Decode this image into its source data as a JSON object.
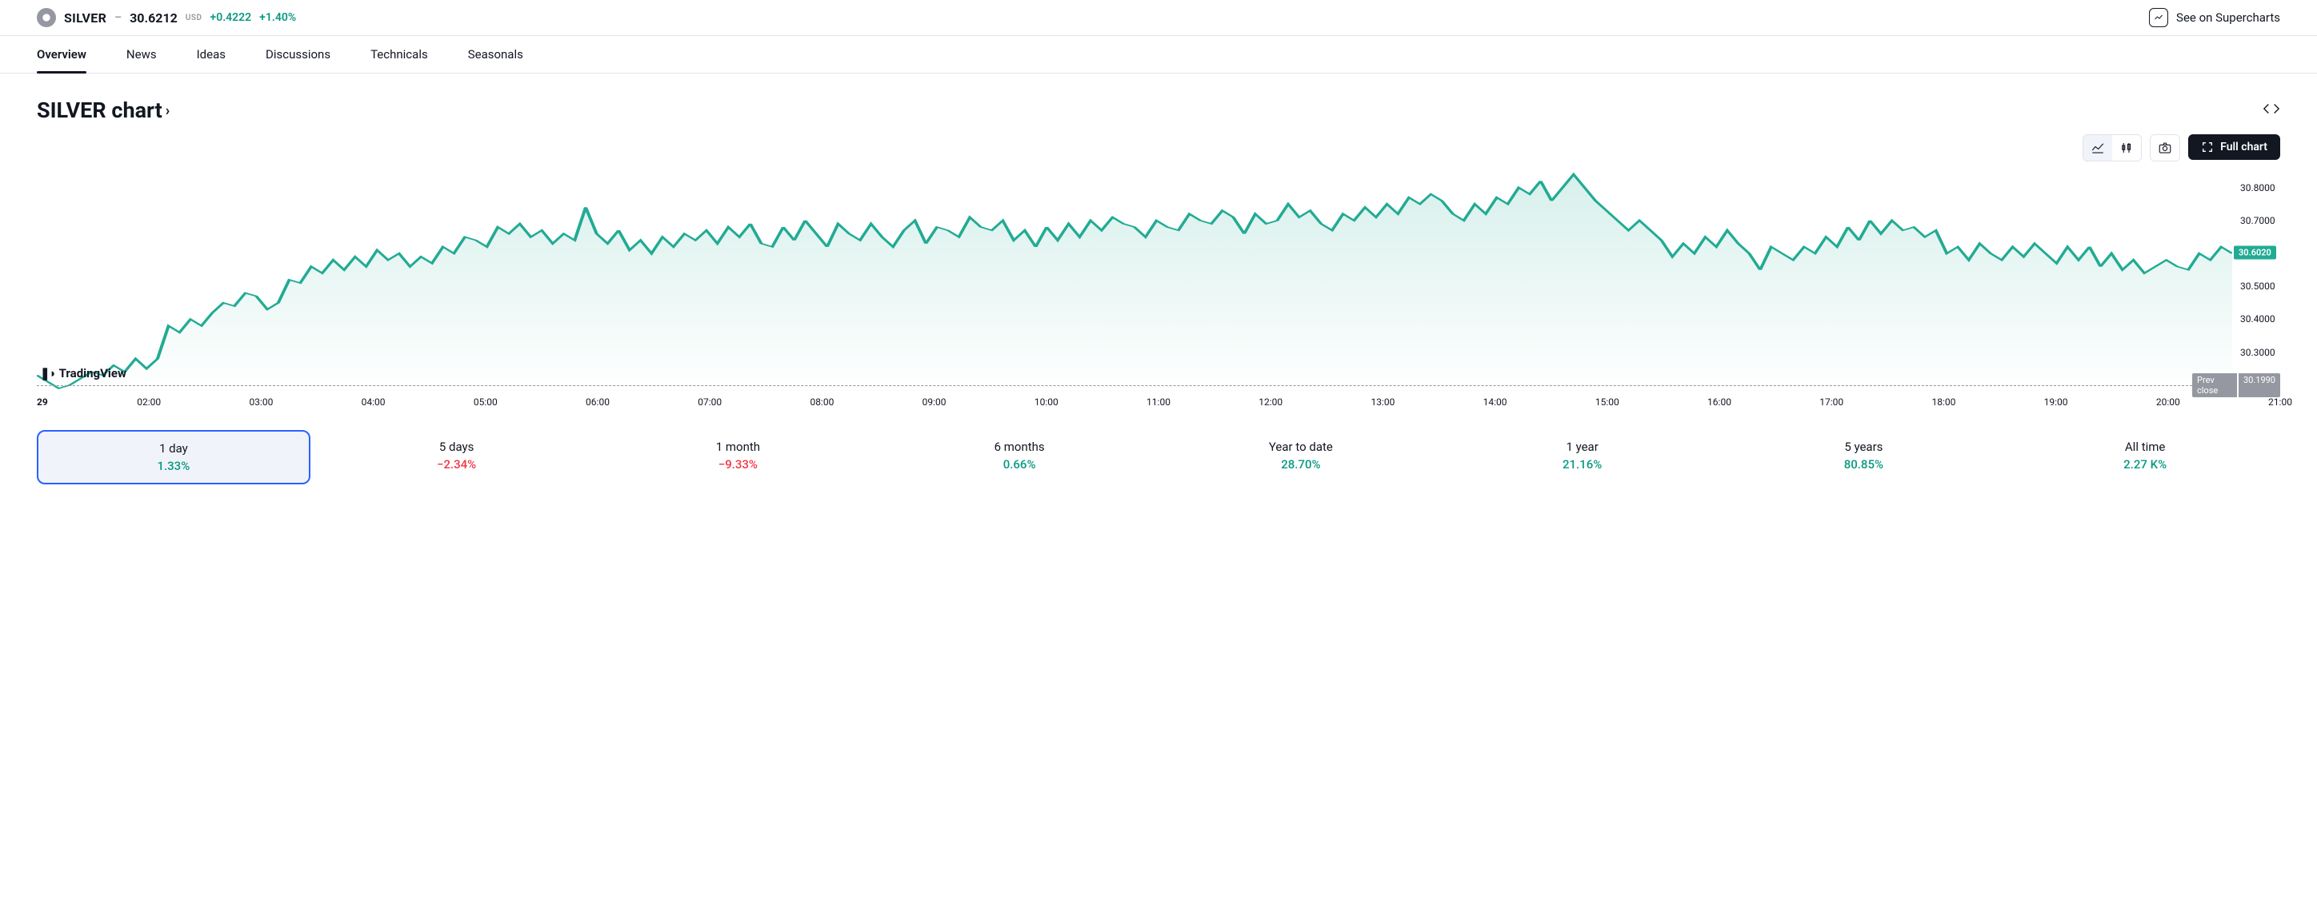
{
  "header": {
    "symbol": "SILVER",
    "price": "30.6212",
    "currency": "USD",
    "change_abs": "+0.4222",
    "change_pct": "+1.40%",
    "change_color": "#089981",
    "supercharts_label": "See on Supercharts"
  },
  "tabs": [
    {
      "label": "Overview",
      "active": true
    },
    {
      "label": "News",
      "active": false
    },
    {
      "label": "Ideas",
      "active": false
    },
    {
      "label": "Discussions",
      "active": false
    },
    {
      "label": "Technicals",
      "active": false
    },
    {
      "label": "Seasonals",
      "active": false
    }
  ],
  "chart": {
    "title": "SILVER chart",
    "watermark": "TradingView",
    "full_chart_label": "Full chart",
    "type": "area",
    "line_color": "#22ab94",
    "fill_top": "rgba(34,171,148,0.18)",
    "fill_bottom": "rgba(34,171,148,0.0)",
    "background_color": "#ffffff",
    "ylim": [
      30.18,
      30.86
    ],
    "y_ticks": [
      30.3,
      30.4,
      30.5,
      30.6,
      30.7,
      30.8
    ],
    "current_price": 30.602,
    "current_price_label": "30.6020",
    "prev_close": 30.199,
    "prev_close_label": "Prev close",
    "prev_close_value": "30.1990",
    "x_labels": [
      "29",
      "02:00",
      "03:00",
      "04:00",
      "05:00",
      "06:00",
      "07:00",
      "08:00",
      "09:00",
      "10:00",
      "11:00",
      "12:00",
      "13:00",
      "14:00",
      "15:00",
      "16:00",
      "17:00",
      "18:00",
      "19:00",
      "20:00",
      "21:00"
    ],
    "series": [
      30.23,
      30.21,
      30.19,
      30.2,
      30.22,
      30.24,
      30.23,
      30.26,
      30.24,
      30.28,
      30.25,
      30.28,
      30.38,
      30.36,
      30.4,
      30.38,
      30.42,
      30.45,
      30.44,
      30.48,
      30.47,
      30.43,
      30.45,
      30.52,
      30.51,
      30.56,
      30.54,
      30.58,
      30.55,
      30.59,
      30.56,
      30.61,
      30.58,
      30.6,
      30.56,
      30.59,
      30.57,
      30.62,
      30.6,
      30.65,
      30.64,
      30.62,
      30.68,
      30.66,
      30.69,
      30.65,
      30.67,
      30.63,
      30.66,
      30.64,
      30.74,
      30.66,
      30.63,
      30.67,
      30.61,
      30.64,
      30.6,
      30.65,
      30.62,
      30.66,
      30.64,
      30.67,
      30.63,
      30.68,
      30.65,
      30.69,
      30.63,
      30.62,
      30.68,
      30.64,
      30.7,
      30.66,
      30.62,
      30.69,
      30.66,
      30.64,
      30.69,
      30.65,
      30.62,
      30.67,
      30.7,
      30.63,
      30.68,
      30.67,
      30.65,
      30.71,
      30.68,
      30.67,
      30.7,
      30.64,
      30.67,
      30.62,
      30.68,
      30.64,
      30.69,
      30.65,
      30.7,
      30.67,
      30.71,
      30.69,
      30.68,
      30.65,
      30.7,
      30.68,
      30.67,
      30.72,
      30.7,
      30.69,
      30.73,
      30.71,
      30.66,
      30.72,
      30.69,
      30.7,
      30.75,
      30.71,
      30.73,
      30.69,
      30.67,
      30.72,
      30.7,
      30.74,
      30.71,
      30.75,
      30.72,
      30.77,
      30.75,
      30.78,
      30.76,
      30.72,
      30.7,
      30.75,
      30.72,
      30.77,
      30.75,
      30.8,
      30.78,
      30.82,
      30.76,
      30.8,
      30.84,
      30.8,
      30.76,
      30.73,
      30.7,
      30.67,
      30.7,
      30.67,
      30.64,
      30.59,
      30.63,
      30.6,
      30.65,
      30.62,
      30.67,
      30.63,
      30.6,
      30.55,
      30.62,
      30.6,
      30.58,
      30.62,
      30.6,
      30.65,
      30.62,
      30.68,
      30.64,
      30.7,
      30.66,
      30.7,
      30.67,
      30.68,
      30.65,
      30.67,
      30.6,
      30.62,
      30.58,
      30.63,
      30.6,
      30.58,
      30.62,
      30.59,
      30.63,
      30.6,
      30.57,
      30.62,
      30.58,
      30.62,
      30.56,
      30.6,
      30.55,
      30.58,
      30.54,
      30.56,
      30.58,
      30.56,
      30.55,
      30.6,
      30.58,
      30.62,
      30.6
    ]
  },
  "timeframes": [
    {
      "label": "1 day",
      "value": "1.33%",
      "color": "#089981",
      "selected": true
    },
    {
      "label": "5 days",
      "value": "−2.34%",
      "color": "#f23645",
      "selected": false
    },
    {
      "label": "1 month",
      "value": "−9.33%",
      "color": "#f23645",
      "selected": false
    },
    {
      "label": "6 months",
      "value": "0.66%",
      "color": "#089981",
      "selected": false
    },
    {
      "label": "Year to date",
      "value": "28.70%",
      "color": "#089981",
      "selected": false
    },
    {
      "label": "1 year",
      "value": "21.16%",
      "color": "#089981",
      "selected": false
    },
    {
      "label": "5 years",
      "value": "80.85%",
      "color": "#089981",
      "selected": false
    },
    {
      "label": "All time",
      "value": "2.27 K%",
      "color": "#089981",
      "selected": false
    }
  ]
}
